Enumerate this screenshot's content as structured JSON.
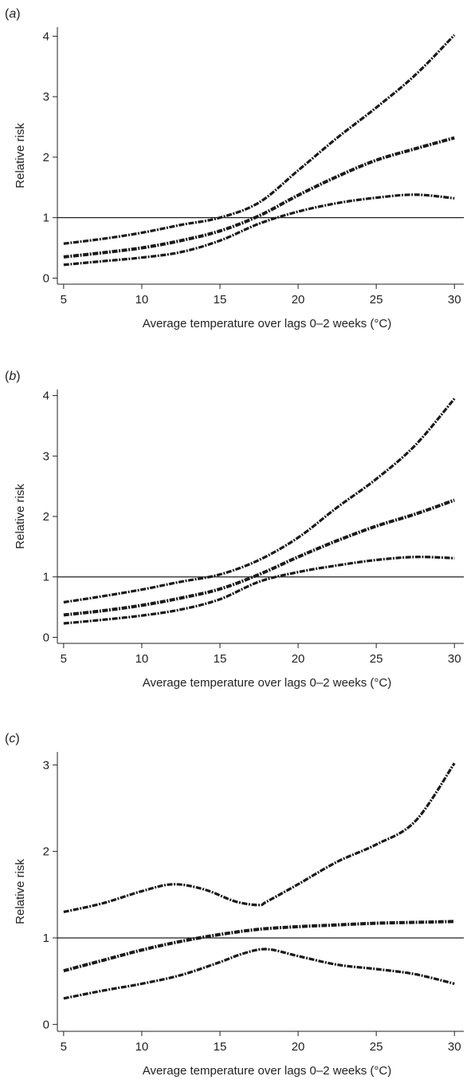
{
  "chart_data": [
    {
      "type": "line",
      "panel_label": "a",
      "xlabel": "Average temperature over lags 0–2 weeks (°C)",
      "ylabel": "Relative risk",
      "xlim": [
        4.6,
        30.6
      ],
      "ylim": [
        -0.1,
        4.15
      ],
      "xticks": [
        5,
        10,
        15,
        20,
        25,
        30
      ],
      "yticks": [
        0,
        1,
        2,
        3,
        4
      ],
      "reference_line": 1,
      "series": [
        {
          "role": "upper",
          "x": [
            5,
            7.5,
            10,
            12.5,
            15,
            17.5,
            20,
            22.5,
            25,
            27.5,
            30
          ],
          "y": [
            0.57,
            0.65,
            0.75,
            0.88,
            1.0,
            1.25,
            1.78,
            2.32,
            2.82,
            3.36,
            4.02
          ]
        },
        {
          "role": "estimate",
          "x": [
            5,
            7.5,
            10,
            12.5,
            15,
            17.5,
            20,
            22.5,
            25,
            27.5,
            30
          ],
          "y": [
            0.35,
            0.42,
            0.5,
            0.62,
            0.78,
            1.03,
            1.37,
            1.68,
            1.95,
            2.14,
            2.32
          ]
        },
        {
          "role": "lower",
          "x": [
            5,
            7.5,
            10,
            12.5,
            15,
            17.5,
            20,
            22.5,
            25,
            27.5,
            30
          ],
          "y": [
            0.22,
            0.28,
            0.34,
            0.43,
            0.62,
            0.9,
            1.1,
            1.24,
            1.33,
            1.38,
            1.32
          ]
        }
      ]
    },
    {
      "type": "line",
      "panel_label": "b",
      "xlabel": "Average temperature over lags 0–2 weeks (°C)",
      "ylabel": "Relative risk",
      "xlim": [
        4.6,
        30.6
      ],
      "ylim": [
        -0.1,
        4.1
      ],
      "xticks": [
        5,
        10,
        15,
        20,
        25,
        30
      ],
      "yticks": [
        0,
        1,
        2,
        3,
        4
      ],
      "reference_line": 1,
      "series": [
        {
          "role": "upper",
          "x": [
            5,
            7.5,
            10,
            12.5,
            15,
            17.5,
            20,
            22.5,
            25,
            27.5,
            30
          ],
          "y": [
            0.58,
            0.68,
            0.79,
            0.92,
            1.04,
            1.28,
            1.65,
            2.15,
            2.62,
            3.18,
            3.95
          ]
        },
        {
          "role": "estimate",
          "x": [
            5,
            7.5,
            10,
            12.5,
            15,
            17.5,
            20,
            22.5,
            25,
            27.5,
            30
          ],
          "y": [
            0.37,
            0.44,
            0.53,
            0.65,
            0.8,
            1.04,
            1.33,
            1.6,
            1.84,
            2.04,
            2.27
          ]
        },
        {
          "role": "lower",
          "x": [
            5,
            7.5,
            10,
            12.5,
            15,
            17.5,
            20,
            22.5,
            25,
            27.5,
            30
          ],
          "y": [
            0.23,
            0.29,
            0.36,
            0.46,
            0.63,
            0.92,
            1.08,
            1.19,
            1.28,
            1.33,
            1.31
          ]
        }
      ]
    },
    {
      "type": "line",
      "panel_label": "c",
      "xlabel": "Average temperature over lags 0–2 weeks (°C)",
      "ylabel": "Relative risk",
      "xlim": [
        4.6,
        30.6
      ],
      "ylim": [
        -0.08,
        3.15
      ],
      "xticks": [
        5,
        10,
        15,
        20,
        25,
        30
      ],
      "yticks": [
        0,
        1,
        2,
        3
      ],
      "reference_line": 1,
      "series": [
        {
          "role": "upper",
          "x": [
            5,
            7.5,
            10,
            12,
            14,
            16,
            17.5,
            18,
            20,
            22.5,
            25,
            27.5,
            30
          ],
          "y": [
            1.3,
            1.4,
            1.54,
            1.62,
            1.56,
            1.42,
            1.38,
            1.42,
            1.62,
            1.88,
            2.08,
            2.35,
            3.02
          ]
        },
        {
          "role": "estimate",
          "x": [
            5,
            7.5,
            10,
            12.5,
            15,
            17.5,
            20,
            22.5,
            25,
            27.5,
            30
          ],
          "y": [
            0.62,
            0.74,
            0.86,
            0.96,
            1.04,
            1.1,
            1.13,
            1.15,
            1.17,
            1.18,
            1.19
          ]
        },
        {
          "role": "lower",
          "x": [
            5,
            7.5,
            10,
            12.5,
            15,
            16.5,
            18,
            20,
            22.5,
            25,
            27.5,
            30
          ],
          "y": [
            0.3,
            0.39,
            0.47,
            0.57,
            0.72,
            0.82,
            0.87,
            0.79,
            0.69,
            0.64,
            0.58,
            0.47
          ]
        }
      ]
    }
  ]
}
